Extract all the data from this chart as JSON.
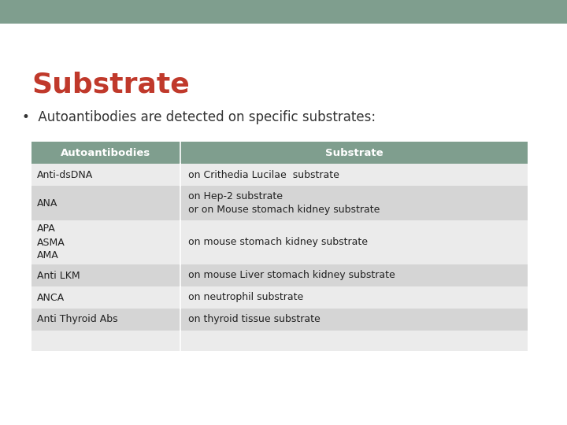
{
  "title": "Substrate",
  "title_color": "#C0392B",
  "bullet_text": "Autoantibodies are detected on specific substrates:",
  "header_bg": "#7F9E8E",
  "header_text_color": "#FFFFFF",
  "header_col1": "Autoantibodies",
  "header_col2": "Substrate",
  "row_odd_bg": "#EBEBEB",
  "row_even_bg": "#D5D5D5",
  "top_bar_color": "#7F9E8E",
  "background_color": "#FFFFFF",
  "table_text_color": "#222222",
  "rows": [
    [
      "Anti-dsDNA",
      "on Crithedia Lucilae  substrate"
    ],
    [
      "ANA",
      "on Hep-2 substrate\nor on Mouse stomach kidney substrate"
    ],
    [
      "APA\nASMA\nAMA",
      "on mouse stomach kidney substrate"
    ],
    [
      "Anti LKM",
      "on mouse Liver stomach kidney substrate"
    ],
    [
      "ANCA",
      "on neutrophil substrate"
    ],
    [
      "Anti Thyroid Abs",
      "on thyroid tissue substrate"
    ],
    [
      "",
      ""
    ]
  ]
}
